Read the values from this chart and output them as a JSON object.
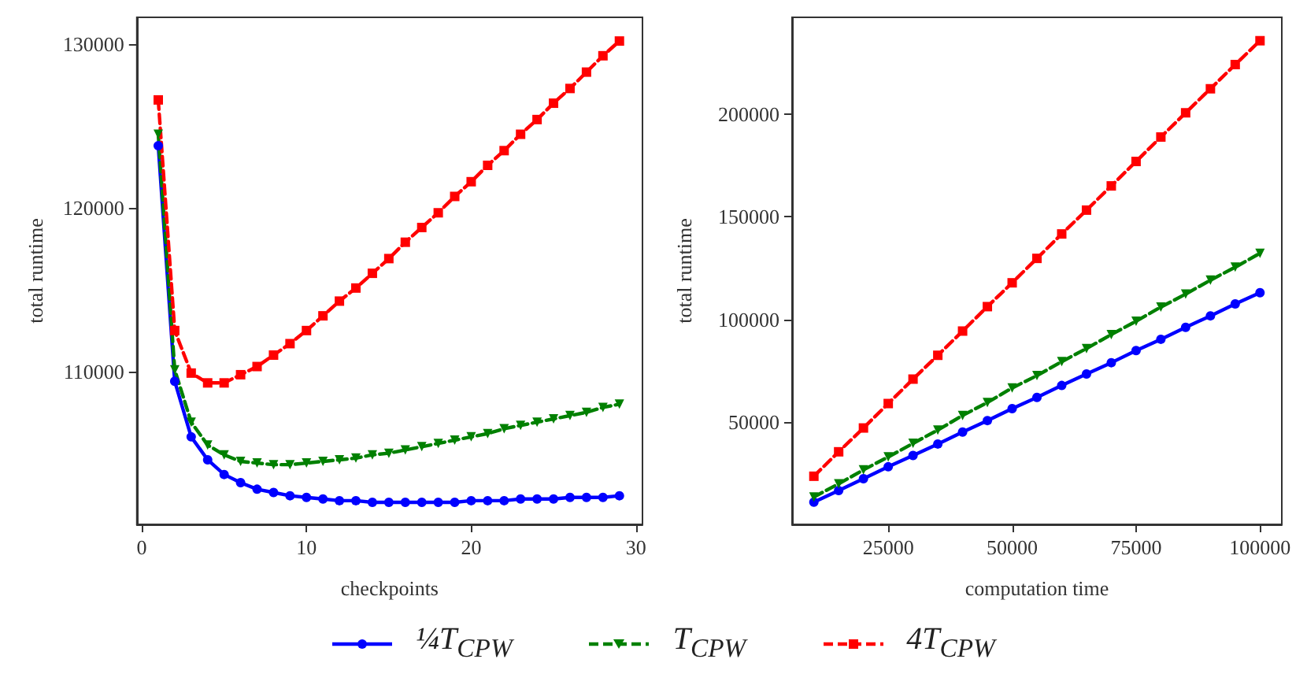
{
  "chart_data": [
    {
      "type": "line",
      "xlabel": "checkpoints",
      "ylabel": "total runtime",
      "x": [
        1,
        2,
        3,
        4,
        5,
        6,
        7,
        8,
        9,
        10,
        11,
        12,
        13,
        14,
        15,
        16,
        17,
        18,
        19,
        20,
        21,
        22,
        23,
        24,
        25,
        26,
        27,
        28,
        29
      ],
      "xlim": [
        -0.3,
        30.4
      ],
      "xticks": [
        0,
        10,
        20,
        30
      ],
      "ylim": [
        100650,
        131650
      ],
      "yticks": [
        110000,
        120000,
        130000
      ],
      "grid": false,
      "legend": "bottom",
      "series": [
        {
          "name": "¼T$_{CPW}$",
          "color": "#0000ff",
          "marker": "circle",
          "line_style": "solid",
          "values": [
            123800,
            109400,
            106000,
            104600,
            103700,
            103200,
            102800,
            102600,
            102400,
            102300,
            102200,
            102100,
            102100,
            102000,
            102000,
            102000,
            102000,
            102000,
            102000,
            102100,
            102100,
            102100,
            102200,
            102200,
            102200,
            102300,
            102300,
            102300,
            102400
          ]
        },
        {
          "name": "T$_{CPW}$",
          "color": "#008000",
          "marker": "triangle",
          "line_style": "dashed",
          "values": [
            124500,
            110100,
            106900,
            105500,
            104900,
            104500,
            104400,
            104300,
            104300,
            104400,
            104500,
            104600,
            104700,
            104900,
            105000,
            105200,
            105400,
            105600,
            105800,
            106000,
            106200,
            106500,
            106700,
            106900,
            107100,
            107300,
            107500,
            107800,
            108000
          ]
        },
        {
          "name": "4T$_{CPW}$",
          "color": "#ff0000",
          "marker": "square",
          "line_style": "dashed",
          "values": [
            126600,
            112500,
            109900,
            109300,
            109300,
            109800,
            110300,
            111000,
            111700,
            112500,
            113400,
            114300,
            115100,
            116000,
            116900,
            117900,
            118800,
            119700,
            120700,
            121600,
            122600,
            123500,
            124500,
            125400,
            126400,
            127300,
            128300,
            129300,
            130200
          ]
        }
      ]
    },
    {
      "type": "line",
      "xlabel": "computation time",
      "ylabel": "total runtime",
      "x": [
        10000,
        15000,
        20000,
        25000,
        30000,
        35000,
        40000,
        45000,
        50000,
        55000,
        60000,
        65000,
        70000,
        75000,
        80000,
        85000,
        90000,
        95000,
        100000
      ],
      "xlim": [
        5600,
        104400
      ],
      "xticks": [
        25000,
        50000,
        75000,
        100000
      ],
      "ylim": [
        250,
        247200
      ],
      "yticks": [
        50000,
        100000,
        150000,
        200000
      ],
      "grid": false,
      "series": [
        {
          "color": "#0000ff",
          "marker": "circle",
          "line_style": "solid",
          "values": [
            11100,
            16700,
            22500,
            28300,
            33800,
            39400,
            45200,
            50800,
            56600,
            62100,
            67900,
            73500,
            79000,
            84900,
            90400,
            96200,
            101800,
            107600,
            113100
          ]
        },
        {
          "color": "#008000",
          "marker": "triangle",
          "line_style": "dashed",
          "values": [
            13600,
            20000,
            26800,
            33100,
            39700,
            46200,
            53300,
            59600,
            66700,
            72700,
            79500,
            85900,
            92700,
            99200,
            106100,
            112400,
            119200,
            125500,
            132300
          ]
        },
        {
          "color": "#ff0000",
          "marker": "square",
          "line_style": "dashed",
          "values": [
            23700,
            35600,
            47200,
            59100,
            71000,
            82600,
            94400,
            106300,
            117900,
            129800,
            141700,
            153300,
            165100,
            177000,
            188900,
            200700,
            212400,
            224200,
            235800
          ]
        }
      ]
    }
  ]
}
